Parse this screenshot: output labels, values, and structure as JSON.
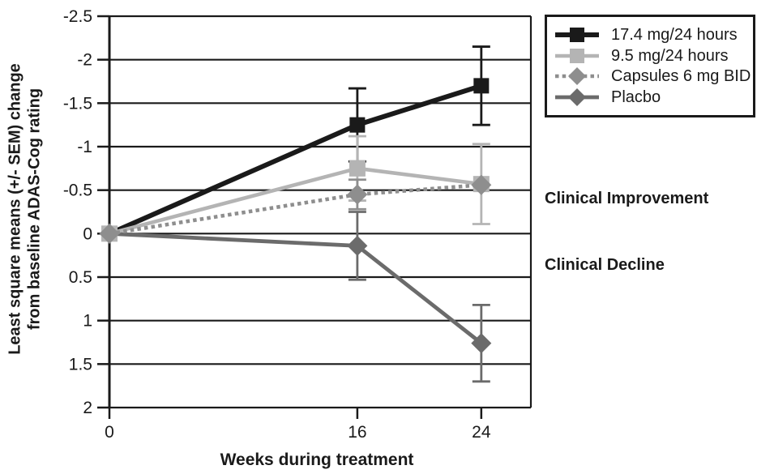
{
  "figure": {
    "y_axis_title": "Least square means (+/- SEM) change\nfrom baseline ADAS-Cog rating",
    "x_axis_title": "Weeks during treatment",
    "annotations": {
      "improvement": "Clinical Improvement",
      "decline": "Clinical Decline"
    }
  },
  "chart_data": {
    "type": "line",
    "title": "",
    "xlabel": "Weeks during treatment",
    "ylabel": "Least square means (+/- SEM) change from baseline ADAS-Cog rating",
    "x": [
      0,
      16,
      24
    ],
    "xtick_labels": [
      "0",
      "16",
      "24"
    ],
    "yticks": [
      -2.5,
      -2,
      -1.5,
      -1,
      -0.5,
      0,
      0.5,
      1,
      1.5,
      2
    ],
    "ytick_labels": [
      "-2.5",
      "-2",
      "-1.5",
      "-1",
      "-0.5",
      "0",
      "0.5",
      "1",
      "1.5",
      "2"
    ],
    "ylim": [
      -2.5,
      2
    ],
    "xlim": [
      0,
      27.2
    ],
    "y_axis_inverted": true,
    "grid": "horizontal",
    "legend_position": "outside-top-right",
    "axis_color": "#1a1a1a",
    "annotations": [
      "Clinical Improvement",
      "Clinical Decline"
    ],
    "series": [
      {
        "name": "17.4 mg/24 hours",
        "color": "#1a1a1a",
        "marker": "square",
        "line_style": "solid",
        "line_width": 6,
        "values": [
          0,
          -1.25,
          -1.7
        ],
        "sem": [
          0,
          0.42,
          0.45
        ],
        "draw_order": 2
      },
      {
        "name": "9.5 mg/24 hours",
        "color": "#b4b4b4",
        "marker": "square",
        "line_style": "solid",
        "line_width": 4.6,
        "values": [
          0,
          -0.75,
          -0.57
        ],
        "sem": [
          0,
          0.37,
          0.46
        ],
        "draw_order": 3
      },
      {
        "name": "Capsules 6 mg BID",
        "color": "#8e8e8e",
        "marker": "diamond",
        "line_style": "dotted",
        "line_width": 4.6,
        "values": [
          0,
          -0.45,
          -0.56
        ],
        "sem": [
          0,
          0.17,
          0
        ],
        "draw_order": 4
      },
      {
        "name": "Placbo",
        "color": "#6b6b6b",
        "marker": "diamond",
        "line_style": "solid",
        "line_width": 4.8,
        "values": [
          0,
          0.14,
          1.26
        ],
        "sem": [
          0,
          0.39,
          0.44
        ],
        "draw_order": 1
      }
    ]
  }
}
